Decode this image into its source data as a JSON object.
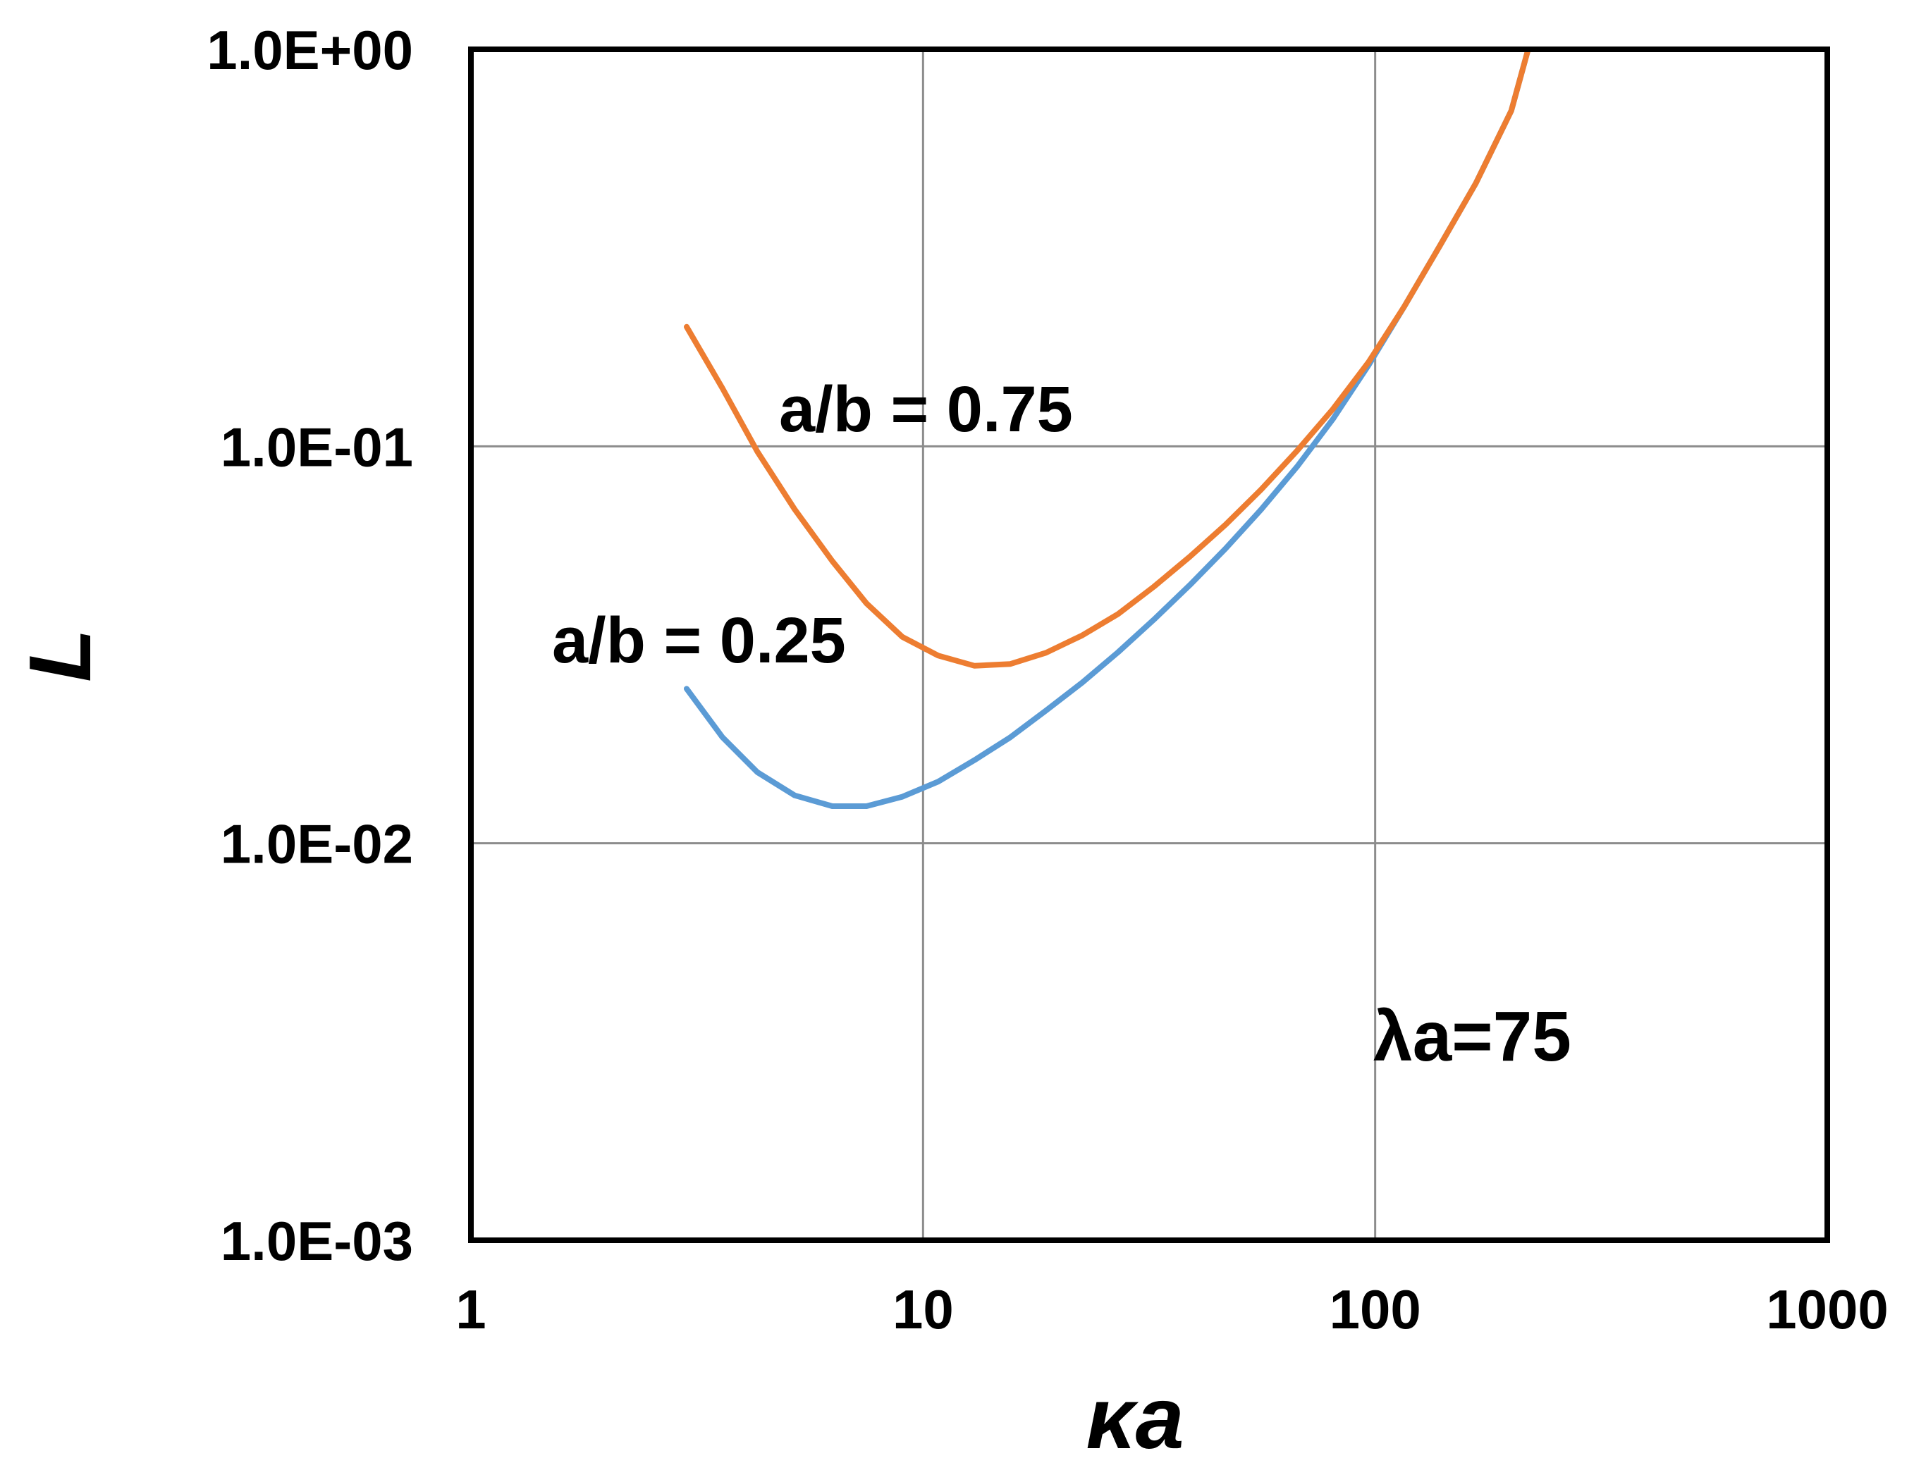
{
  "chart_data": {
    "type": "line",
    "title": "",
    "xlabel": "κa",
    "ylabel": "L",
    "x_scale": "log",
    "y_scale": "log",
    "xlim": [
      1,
      1000
    ],
    "ylim": [
      0.001,
      1
    ],
    "x_ticks": [
      "1",
      "10",
      "100",
      "1000"
    ],
    "y_ticks": [
      "1.0E-03",
      "1.0E-02",
      "1.0E-01",
      "1.0E+00"
    ],
    "grid": true,
    "legend": "none",
    "annotations": [
      "λa=75"
    ],
    "series": [
      {
        "label": "a/b = 0.25",
        "color": "#5b9bd5",
        "x": [
          3,
          3.6,
          4.3,
          5.2,
          6.3,
          7.5,
          9,
          10.8,
          13,
          15.6,
          18.7,
          22.5,
          27,
          32.4,
          38.9,
          46.7,
          56,
          67.2,
          80.6,
          96.7,
          116,
          139,
          167,
          200,
          218
        ],
        "y": [
          0.0245,
          0.0185,
          0.0151,
          0.0132,
          0.0124,
          0.0124,
          0.0131,
          0.0143,
          0.0162,
          0.0185,
          0.0216,
          0.0254,
          0.0303,
          0.0366,
          0.0447,
          0.0553,
          0.0694,
          0.0889,
          0.117,
          0.16,
          0.225,
          0.32,
          0.46,
          0.7,
          1.0
        ]
      },
      {
        "label": "a/b = 0.75",
        "color": "#ed7d31",
        "x": [
          3,
          3.6,
          4.3,
          5.2,
          6.3,
          7.5,
          9,
          10.8,
          13,
          15.6,
          18.7,
          22.5,
          27,
          32.4,
          38.9,
          46.7,
          56,
          67.2,
          80.6,
          96.7,
          116,
          139,
          167,
          200,
          218
        ],
        "y": [
          0.2,
          0.14,
          0.097,
          0.0694,
          0.0514,
          0.0402,
          0.0331,
          0.0297,
          0.028,
          0.0283,
          0.0302,
          0.0334,
          0.0378,
          0.0443,
          0.0527,
          0.0635,
          0.0779,
          0.0975,
          0.124,
          0.163,
          0.225,
          0.32,
          0.46,
          0.7,
          1.0
        ]
      }
    ]
  }
}
